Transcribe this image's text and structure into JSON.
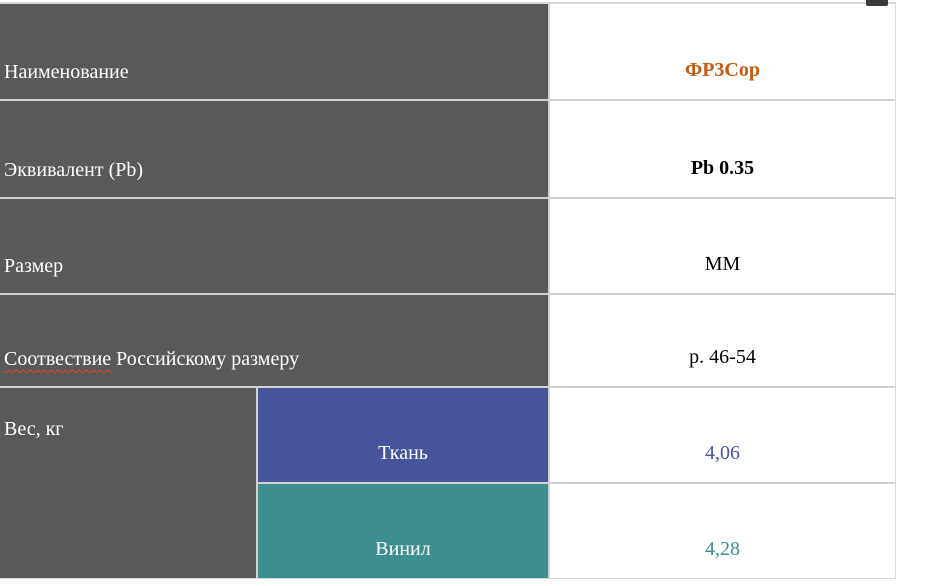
{
  "table": {
    "rows": [
      {
        "label": "Наименование",
        "value": "ФР3Сор"
      },
      {
        "label": "Эквивалент (Pb)",
        "value": "Pb 0.35"
      },
      {
        "label": "Размер",
        "value": "ММ"
      },
      {
        "label_word1": "Соотвествие",
        "label_rest": " Российскому размеру",
        "value": "р. 46-54"
      },
      {
        "label": "Вес, кг",
        "sub": [
          {
            "name": "Ткань",
            "value": "4,06"
          },
          {
            "name": "Винил",
            "value": "4,28"
          }
        ]
      }
    ],
    "colors": {
      "dark_cell": "#595959",
      "fabric_blue": "#47549b",
      "vinyl_teal": "#3d8f8f",
      "value_orange": "#c55a11",
      "value_blue": "#47549b",
      "value_teal": "#3d8f8f",
      "grid_line": "#d2d2d2",
      "spellcheck_red": "#e8442e"
    }
  }
}
